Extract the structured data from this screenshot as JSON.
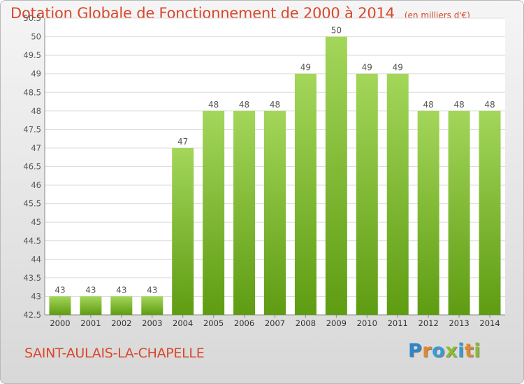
{
  "header": {
    "title": "Dotation Globale de Fonctionnement de 2000 à 2014",
    "subtitle": "(en milliers d'€)"
  },
  "footer": {
    "commune": "SAINT-AULAIS-LA-CHAPELLE",
    "logo_letters": [
      "P",
      "r",
      "o",
      "x",
      "i",
      "t",
      "i"
    ]
  },
  "colors": {
    "title": "#d9472b",
    "bar_top": "#a3d65a",
    "bar_bottom": "#5e9c12",
    "logo": [
      "#2f86c8",
      "#e5872f",
      "#3a9ad6",
      "#8bbd2f",
      "#3a9ad6",
      "#e5872f",
      "#8bbd2f"
    ]
  },
  "chart_data": {
    "type": "bar",
    "categories": [
      "2000",
      "2001",
      "2002",
      "2003",
      "2004",
      "2005",
      "2006",
      "2007",
      "2008",
      "2009",
      "2010",
      "2011",
      "2012",
      "2013",
      "2014"
    ],
    "values": [
      43,
      43,
      43,
      43,
      47,
      48,
      48,
      48,
      49,
      50,
      49,
      49,
      48,
      48,
      48
    ],
    "value_labels": [
      "43",
      "43",
      "43",
      "43",
      "47",
      "48",
      "48",
      "48",
      "49",
      "50",
      "49",
      "49",
      "48",
      "48",
      "48"
    ],
    "y_ticks": [
      "42.5",
      "43",
      "43.5",
      "44",
      "44.5",
      "45",
      "45.5",
      "46",
      "46.5",
      "47",
      "47.5",
      "48",
      "48.5",
      "49",
      "49.5",
      "50",
      "50.5"
    ],
    "ylim": [
      42.5,
      50.5
    ],
    "grid": true,
    "legend": "none"
  }
}
